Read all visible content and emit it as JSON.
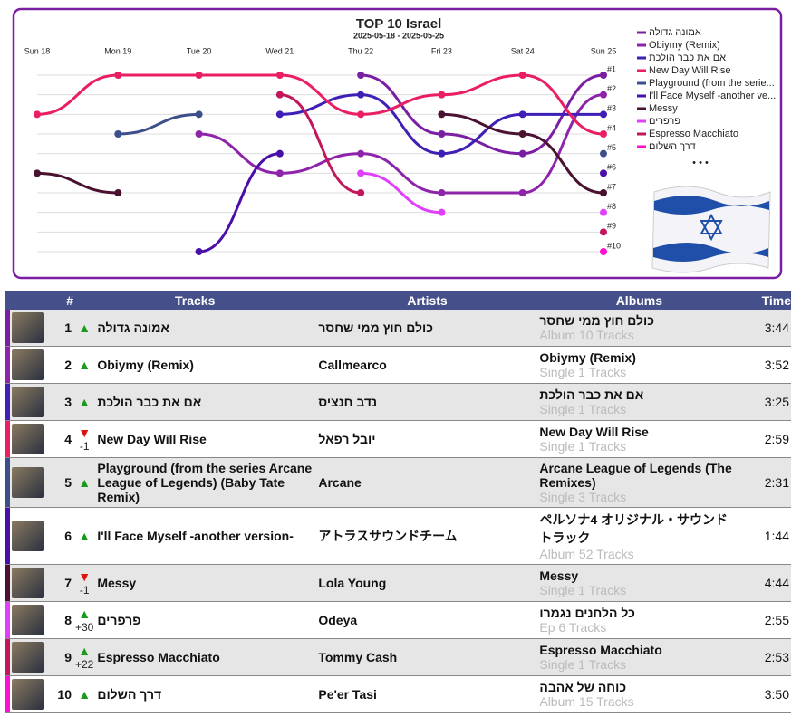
{
  "chart_data": {
    "type": "bump",
    "title": "TOP 10 Israel",
    "subtitle": "2025-05-18 - 2025-05-25",
    "categories": [
      "Sun 18",
      "Mon 19",
      "Tue 20",
      "Wed 21",
      "Thu 22",
      "Fri 23",
      "Sat 24",
      "Sun 25"
    ],
    "ylim": [
      1,
      10
    ],
    "y_reversed": true,
    "grid": true,
    "legend": "right",
    "legend_more": "• • •",
    "yticks": [
      {
        "value": 1,
        "label": "#1"
      },
      {
        "value": 2,
        "label": "#2"
      },
      {
        "value": 3,
        "label": "#3"
      },
      {
        "value": 4,
        "label": "#4"
      },
      {
        "value": 5,
        "label": "#5"
      },
      {
        "value": 6,
        "label": "#6"
      },
      {
        "value": 7,
        "label": "#7"
      },
      {
        "value": 8,
        "label": "#8"
      },
      {
        "value": 9,
        "label": "#9"
      },
      {
        "value": 10,
        "label": "#10"
      }
    ],
    "series": [
      {
        "name": "אמונה גדולה",
        "color": "#7b1fa2",
        "values": [
          null,
          null,
          null,
          null,
          1,
          4,
          5,
          1
        ]
      },
      {
        "name": "Obiymy (Remix)",
        "color": "#8e24aa",
        "values": [
          null,
          null,
          4,
          6,
          5,
          7,
          7,
          2
        ]
      },
      {
        "name": "אם את כבר הולכת",
        "color": "#3f1fb5",
        "values": [
          null,
          null,
          null,
          3,
          2,
          5,
          3,
          3
        ]
      },
      {
        "name": "New Day Will Rise",
        "color": "#e91e63",
        "values": [
          3,
          1,
          1,
          1,
          3,
          2,
          1,
          4
        ]
      },
      {
        "name": "Playground (from the serie...",
        "color": "#3d4f8a",
        "values": [
          null,
          4,
          3,
          null,
          null,
          null,
          null,
          5
        ]
      },
      {
        "name": "I'll Face Myself -another ve...",
        "color": "#4a0fa8",
        "values": [
          null,
          null,
          10,
          5,
          null,
          null,
          null,
          6
        ]
      },
      {
        "name": "Messy",
        "color": "#4a1230",
        "values": [
          6,
          7,
          null,
          null,
          null,
          3,
          4,
          7
        ]
      },
      {
        "name": "פרפרים",
        "color": "#e040fb",
        "values": [
          null,
          null,
          null,
          null,
          6,
          8,
          null,
          8
        ]
      },
      {
        "name": "Espresso Macchiato",
        "color": "#c2185b",
        "values": [
          null,
          null,
          null,
          2,
          7,
          null,
          null,
          9
        ]
      },
      {
        "name": "דרך השלום",
        "color": "#ff10d0",
        "values": [
          null,
          null,
          null,
          null,
          null,
          null,
          null,
          10
        ]
      }
    ]
  },
  "table": {
    "header": [
      "#",
      "Tracks",
      "Artists",
      "Albums",
      "Time"
    ],
    "rows": [
      {
        "rank": "1",
        "trend": "up",
        "track": "אמונה גדולה",
        "artist": "כולם חוץ ממי שחסר",
        "album": "כולם חוץ ממי שחסר",
        "album_info": "Album 10 Tracks",
        "time": "3:44"
      },
      {
        "rank": "2",
        "trend": "up",
        "track": "Obiymy (Remix)",
        "artist": "Callmearco",
        "album": "Obiymy (Remix)",
        "album_info": "Single 1 Tracks",
        "time": "3:52"
      },
      {
        "rank": "3",
        "trend": "up",
        "track": "אם את כבר הולכת",
        "artist": "נדב חנציס",
        "album": "אם את כבר הולכת",
        "album_info": "Single 1 Tracks",
        "time": "3:25"
      },
      {
        "rank": "4",
        "trend": "down",
        "change": "-1",
        "track": "New Day Will Rise",
        "artist": "יובל רפאל",
        "album": "New Day Will Rise",
        "album_info": "Single 1 Tracks",
        "time": "2:59"
      },
      {
        "rank": "5",
        "trend": "up",
        "track": "Playground (from the series Arcane League of Legends) (Baby Tate Remix)",
        "artist": "Arcane",
        "album": "Arcane League of Legends (The Remixes)",
        "album_info": "Single 3 Tracks",
        "time": "2:31"
      },
      {
        "rank": "6",
        "trend": "up",
        "track": "I'll Face Myself -another version-",
        "artist": "アトラスサウンドチーム",
        "album": "ペルソナ4 オリジナル・サウンドトラック",
        "album_info": "Album 52 Tracks",
        "time": "1:44"
      },
      {
        "rank": "7",
        "trend": "down",
        "change": "-1",
        "track": "Messy",
        "artist": "Lola Young",
        "album": "Messy",
        "album_info": "Single 1 Tracks",
        "time": "4:44"
      },
      {
        "rank": "8",
        "trend": "up",
        "change": "+30",
        "track": "פרפרים",
        "artist": "Odeya",
        "album": "כל הלחנים נגמרו",
        "album_info": "Ep 6 Tracks",
        "time": "2:55"
      },
      {
        "rank": "9",
        "trend": "up",
        "change": "+22",
        "track": "Espresso Macchiato",
        "artist": "Tommy Cash",
        "album": "Espresso Macchiato",
        "album_info": "Single 1 Tracks",
        "time": "2:53"
      },
      {
        "rank": "10",
        "trend": "up",
        "track": "דרך השלום",
        "artist": "Pe'er Tasi",
        "album": "כוחה של אהבה",
        "album_info": "Album 15 Tracks",
        "time": "3:50"
      }
    ]
  }
}
